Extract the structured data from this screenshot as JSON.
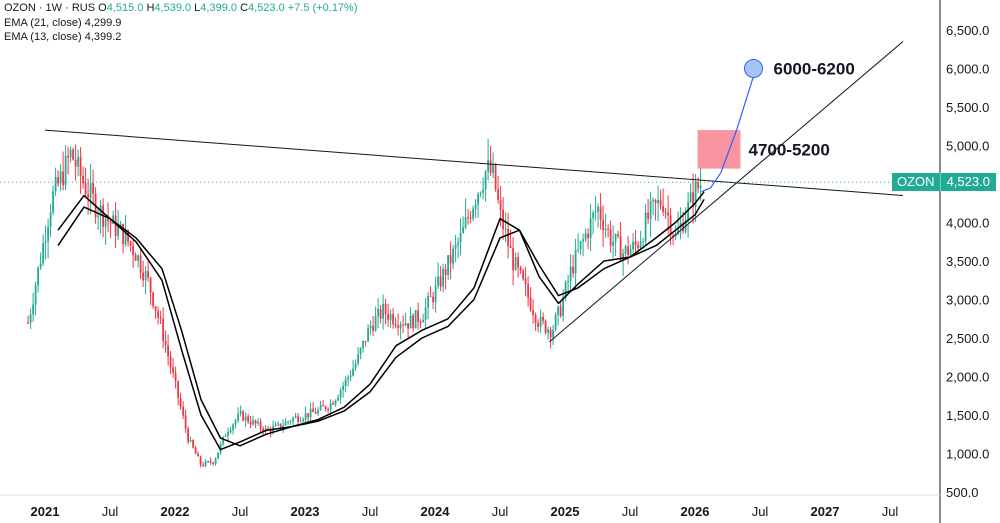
{
  "header": {
    "symbol_line": {
      "symbol": "OZON · 1W · RUS",
      "open_label": "O",
      "open": "4,515.0",
      "high_label": "H",
      "high": "4,539.0",
      "low_label": "L",
      "low": "4,399.0",
      "close_label": "C",
      "close": "4,523.0",
      "change": "+7.5 (+0.17%)"
    },
    "ema21": {
      "label": "EMA (21, close)",
      "value": "4,299.9"
    },
    "ema13": {
      "label": "EMA (13, close)",
      "value": "4,399.2"
    }
  },
  "price_tag": {
    "symbol": "OZON",
    "value": "4,523.0"
  },
  "annotations": {
    "target_zone": "4700-5200",
    "target": "6000-6200"
  },
  "colors": {
    "up": "#22ab94",
    "down": "#f23645",
    "zone": "#f7828f",
    "target_dot": "#a8c4f5",
    "curve": "#2962ff"
  },
  "chart_data": {
    "type": "line",
    "title": "",
    "yaxis": {
      "ticks": [
        6500,
        6000,
        5500,
        5000,
        4500,
        4000,
        3500,
        3000,
        2500,
        2000,
        1500,
        1000,
        500
      ],
      "tick_labels": [
        "6,500.0",
        "6,000.0",
        "5,500.0",
        "5,000.0",
        "4,500.0",
        "4,000.0",
        "3,500.0",
        "3,000.0",
        "2,500.0",
        "2,000.0",
        "1,500.0",
        "1,000.0",
        "500.0"
      ],
      "ylim": [
        450,
        6750
      ]
    },
    "xaxis": {
      "tick_labels": [
        "2021",
        "Jul",
        "2022",
        "Jul",
        "2023",
        "Jul",
        "2024",
        "Jul",
        "2025",
        "Jul",
        "2026",
        "Jul",
        "2027",
        "Jul"
      ],
      "bold": [
        true,
        false,
        true,
        false,
        true,
        false,
        true,
        false,
        true,
        false,
        true,
        false,
        true,
        false
      ],
      "tick_times": [
        2021.0,
        2021.5,
        2022.0,
        2022.5,
        2023.0,
        2023.5,
        2024.0,
        2024.5,
        2025.0,
        2025.5,
        2026.0,
        2026.5,
        2027.0,
        2027.5
      ],
      "xlim": [
        2020.8,
        2027.8
      ]
    },
    "series": [
      {
        "name": "OZON close (approx.)",
        "x": [
          2020.87,
          2020.95,
          2021.05,
          2021.13,
          2021.2,
          2021.3,
          2021.4,
          2021.5,
          2021.6,
          2021.7,
          2021.8,
          2021.9,
          2022.0,
          2022.1,
          2022.2,
          2022.3,
          2022.4,
          2022.5,
          2022.6,
          2022.7,
          2022.8,
          2022.9,
          2023.0,
          2023.1,
          2023.2,
          2023.3,
          2023.4,
          2023.5,
          2023.6,
          2023.7,
          2023.8,
          2023.9,
          2024.0,
          2024.1,
          2024.2,
          2024.3,
          2024.4,
          2024.45,
          2024.5,
          2024.6,
          2024.7,
          2024.8,
          2024.9,
          2024.97,
          2025.05,
          2025.15,
          2025.25,
          2025.35,
          2025.45,
          2025.55,
          2025.65,
          2025.75,
          2025.85,
          2025.95,
          2026.0,
          2026.05
        ],
        "y": [
          2700,
          3400,
          4300,
          4600,
          4900,
          4500,
          4200,
          4000,
          3850,
          3600,
          3200,
          2600,
          1900,
          1200,
          850,
          900,
          1300,
          1500,
          1400,
          1300,
          1350,
          1450,
          1500,
          1550,
          1650,
          1900,
          2200,
          2650,
          2850,
          2750,
          2700,
          2800,
          3100,
          3450,
          3800,
          4300,
          4700,
          4600,
          4100,
          3500,
          3100,
          2700,
          2600,
          2900,
          3400,
          3800,
          4200,
          3800,
          3600,
          3700,
          4100,
          4300,
          3800,
          4200,
          4400,
          4523
        ]
      },
      {
        "name": "EMA (21, close)",
        "x": [
          2021.1,
          2021.3,
          2021.5,
          2021.7,
          2021.9,
          2022.05,
          2022.2,
          2022.35,
          2022.5,
          2022.7,
          2022.9,
          2023.1,
          2023.3,
          2023.5,
          2023.7,
          2023.9,
          2024.1,
          2024.3,
          2024.5,
          2024.65,
          2024.8,
          2024.95,
          2025.1,
          2025.3,
          2025.5,
          2025.7,
          2025.85,
          2026.0,
          2026.07
        ],
        "y": [
          3700,
          4200,
          4050,
          3800,
          3400,
          2600,
          1700,
          1200,
          1100,
          1250,
          1350,
          1420,
          1550,
          1800,
          2250,
          2500,
          2650,
          3000,
          3800,
          3900,
          3450,
          3050,
          3150,
          3400,
          3550,
          3700,
          3900,
          4100,
          4300
        ]
      },
      {
        "name": "EMA (13, close)",
        "x": [
          2021.1,
          2021.3,
          2021.5,
          2021.7,
          2021.9,
          2022.05,
          2022.2,
          2022.35,
          2022.5,
          2022.7,
          2022.9,
          2023.1,
          2023.3,
          2023.5,
          2023.7,
          2023.9,
          2024.1,
          2024.3,
          2024.5,
          2024.65,
          2024.8,
          2024.95,
          2025.1,
          2025.3,
          2025.5,
          2025.7,
          2025.85,
          2026.0,
          2026.07
        ],
        "y": [
          3900,
          4350,
          4050,
          3750,
          3250,
          2350,
          1500,
          1050,
          1150,
          1300,
          1350,
          1440,
          1600,
          1900,
          2400,
          2600,
          2750,
          3150,
          4050,
          3900,
          3300,
          2950,
          3200,
          3500,
          3550,
          3800,
          4000,
          4250,
          4399
        ]
      }
    ],
    "trendlines": [
      {
        "name": "descending-resistance",
        "x": [
          2021.0,
          2027.6
        ],
        "y": [
          5200,
          4350
        ]
      },
      {
        "name": "ascending-support",
        "x": [
          2024.88,
          2027.6
        ],
        "y": [
          2450,
          6350
        ]
      }
    ],
    "zone": {
      "label": "4700-5200",
      "x": [
        2026.02,
        2026.35
      ],
      "y": [
        4700,
        5200
      ]
    },
    "target_point": {
      "label": "6000-6200",
      "x": 2026.45,
      "y": 6000
    },
    "projection": {
      "x": [
        2026.05,
        2026.12,
        2026.2,
        2026.32,
        2026.45
      ],
      "y": [
        4400,
        4450,
        4650,
        5200,
        5900
      ]
    },
    "legend": "none",
    "grid": false
  }
}
